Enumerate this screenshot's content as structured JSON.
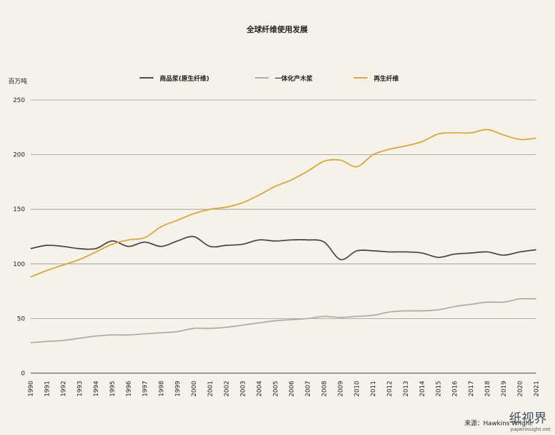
{
  "chart_data": {
    "type": "line",
    "title": "全球纤维使用发展",
    "ylabel": "百万吨",
    "xlabel": "",
    "ylim": [
      0,
      250
    ],
    "yticks": [
      0,
      50,
      100,
      150,
      200,
      250
    ],
    "grid": true,
    "legend_position": "top",
    "x": [
      1990,
      1991,
      1992,
      1993,
      1994,
      1995,
      1996,
      1997,
      1998,
      1999,
      2000,
      2001,
      2002,
      2003,
      2004,
      2005,
      2006,
      2007,
      2008,
      2009,
      2010,
      2011,
      2012,
      2013,
      2014,
      2015,
      2016,
      2017,
      2018,
      2019,
      2020,
      2021
    ],
    "series": [
      {
        "name": "商品浆(原生纤维)",
        "color": "#4a4744",
        "values": [
          114,
          117,
          116,
          114,
          114,
          121,
          116,
          120,
          116,
          121,
          125,
          116,
          117,
          118,
          122,
          121,
          122,
          122,
          120,
          104,
          112,
          112,
          111,
          111,
          110,
          106,
          109,
          110,
          111,
          108,
          111,
          113
        ]
      },
      {
        "name": "一体化产木浆",
        "color": "#a9adb1",
        "values": [
          28,
          29,
          30,
          32,
          34,
          35,
          35,
          36,
          37,
          38,
          41,
          41,
          42,
          44,
          46,
          48,
          49,
          50,
          52,
          51,
          52,
          53,
          56,
          57,
          57,
          58,
          61,
          63,
          65,
          65,
          68,
          68
        ]
      },
      {
        "name": "再生纤维",
        "color": "#d6a73a",
        "values": [
          88,
          94,
          99,
          104,
          111,
          118,
          122,
          124,
          134,
          140,
          146,
          150,
          152,
          156,
          163,
          171,
          177,
          185,
          194,
          195,
          189,
          200,
          205,
          208,
          212,
          219,
          220,
          220,
          223,
          218,
          214,
          215
        ]
      }
    ]
  },
  "source_text": "来源：Hawkins Wright",
  "watermark": {
    "logo_text": "纸视界",
    "url": "paperinsight.net"
  }
}
